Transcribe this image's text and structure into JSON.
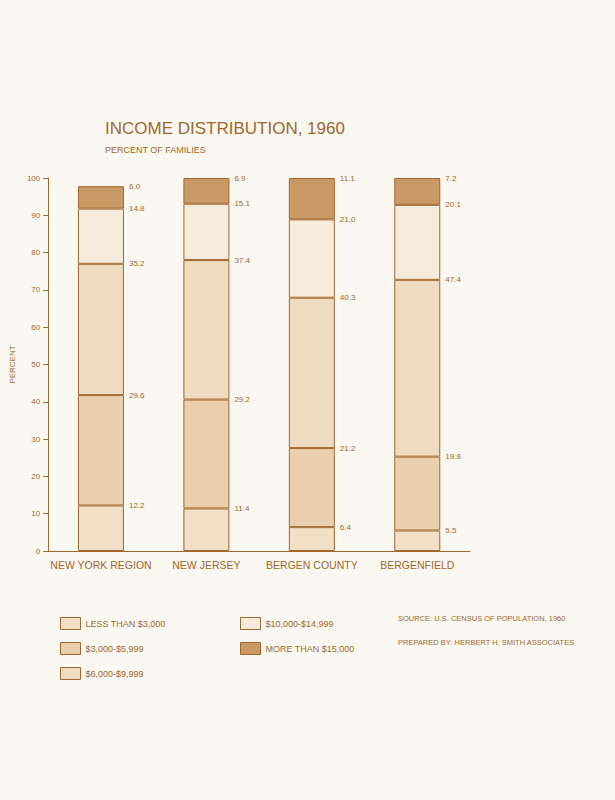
{
  "chart_data": {
    "type": "bar",
    "title": "INCOME DISTRIBUTION, 1960",
    "subtitle": "PERCENT OF FAMILIES",
    "y_label": "PERCENT",
    "categories": [
      "NEW YORK REGION",
      "NEW JERSEY",
      "BERGEN COUNTY",
      "BERGENFIELD"
    ],
    "series": [
      {
        "name": "LESS THAN $3,000",
        "color": "#f1dfc6",
        "values": [
          12.2,
          11.4,
          6.4,
          5.5
        ],
        "value_labels": [
          "12.2",
          "11.4",
          "6.4",
          "5.5"
        ]
      },
      {
        "name": "$3,000-$5,999",
        "color": "#e9cfae",
        "values": [
          29.6,
          29.2,
          21.2,
          19.8
        ],
        "value_labels": [
          "29.6",
          "29.2",
          "21.2",
          "19.8"
        ]
      },
      {
        "name": "$6,000-$9,999",
        "color": "#efdbbf",
        "values": [
          35.2,
          37.4,
          40.3,
          47.4
        ],
        "value_labels": [
          "35.2",
          "37.4",
          "40.3",
          "47.4"
        ]
      },
      {
        "name": "$10,000-$14,999",
        "color": "#f7ecdc",
        "values": [
          14.8,
          15.1,
          21.0,
          20.1
        ],
        "value_labels": [
          "14.8",
          "15.1",
          "21.0",
          "20.1"
        ]
      },
      {
        "name": "MORE THAN $15,000",
        "color": "#c99a66",
        "values": [
          6.0,
          6.9,
          11.1,
          7.2
        ],
        "value_labels": [
          "6.0",
          "6.9",
          "11.1",
          "7.2"
        ]
      }
    ],
    "ylim": [
      0,
      100
    ],
    "yticks": [
      0,
      10,
      20,
      30,
      40,
      50,
      60,
      70,
      80,
      90,
      100
    ],
    "stacked": true,
    "data_labels": true,
    "grid": false,
    "legend": "bottom",
    "annotations": [
      "SOURCE: U.S. CENSUS OF POPULATION, 1960",
      "PREPARED BY: HERBERT H. SMITH ASSOCIATES"
    ]
  }
}
